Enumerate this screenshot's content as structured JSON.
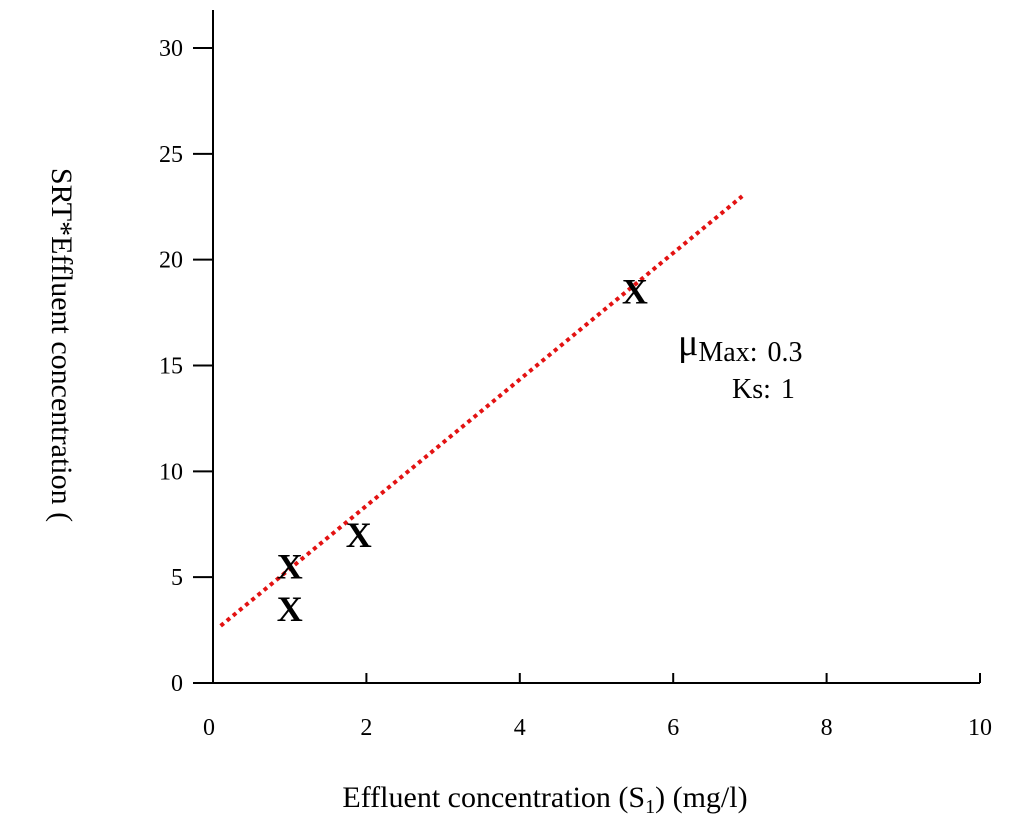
{
  "chart_data": {
    "type": "scatter",
    "xlabel": "Effluent concentration (S",
    "xlabel_sub": "1",
    "xlabel_tail": ") (mg/l)",
    "ylabel": "SRT*Effluent concentration (",
    "xlim": [
      0,
      10
    ],
    "ylim": [
      0,
      30
    ],
    "x_ticks": [
      {
        "value": 0,
        "label": "0"
      },
      {
        "value": 2,
        "label": "2"
      },
      {
        "value": 4,
        "label": "4"
      },
      {
        "value": 6,
        "label": "6"
      },
      {
        "value": 8,
        "label": "8"
      },
      {
        "value": 10,
        "label": "10"
      }
    ],
    "y_ticks": [
      {
        "value": 0,
        "label": "0"
      },
      {
        "value": 5,
        "label": "5"
      },
      {
        "value": 10,
        "label": "10"
      },
      {
        "value": 15,
        "label": "15"
      },
      {
        "value": 20,
        "label": "20"
      },
      {
        "value": 25,
        "label": "25"
      },
      {
        "value": 30,
        "label": "30"
      }
    ],
    "grid": false,
    "series": [
      {
        "marker": "X",
        "color": "#000000",
        "points": [
          {
            "x": 1.0,
            "y": 3.5
          },
          {
            "x": 1.0,
            "y": 5.5
          },
          {
            "x": 1.9,
            "y": 7.0
          },
          {
            "x": 5.5,
            "y": 18.5
          }
        ]
      }
    ],
    "fit_line": {
      "color": "#e31212",
      "style": "dotted",
      "from": {
        "x": 0.1,
        "y": 2.7
      },
      "to": {
        "x": 6.9,
        "y": 23.0
      }
    },
    "annotations": {
      "mu_symbol": "μ",
      "mu_sub": "Max:",
      "mu_value": "0.3",
      "ks_label": "Ks:",
      "ks_value": "1"
    }
  }
}
